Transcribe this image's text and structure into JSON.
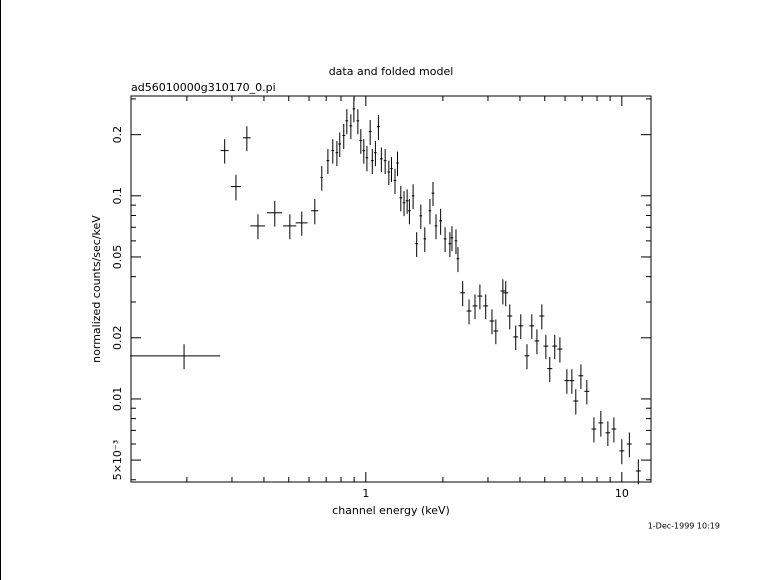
{
  "chart_data": {
    "type": "errorbar",
    "title": "data and folded model",
    "subtitle": "ad56010000g310170_0.pi",
    "x_label": "channel energy (keV)",
    "y_label": "normalized counts/sec/keV",
    "annotation": "1-Dec-1999 10:19",
    "xscale": "log",
    "yscale": "log",
    "color": "#000000",
    "xlim": [
      0.121,
      13
    ],
    "ylim": [
      0.0039,
      0.31
    ],
    "xticks": [
      1,
      10
    ],
    "xticks_minor": [
      0.2,
      0.3,
      0.4,
      0.5,
      0.6,
      0.7,
      0.8,
      0.9,
      2,
      3,
      4,
      5,
      6,
      7,
      8,
      9
    ],
    "yticks": [
      {
        "value": 0.005,
        "label": "5×10⁻³"
      },
      0.01,
      0.02,
      0.05,
      0.1,
      0.2
    ],
    "yticks_minor": [
      0.004,
      0.006,
      0.007,
      0.008,
      0.009,
      0.03,
      0.04,
      0.06,
      0.07,
      0.08,
      0.09,
      0.3
    ],
    "x": [
      0.195,
      0.281,
      0.311,
      0.343,
      0.379,
      0.441,
      0.505,
      0.562,
      0.632,
      0.673,
      0.711,
      0.743,
      0.771,
      0.791,
      0.82,
      0.843,
      0.874,
      0.898,
      0.931,
      0.956,
      0.982,
      1.01,
      1.04,
      1.06,
      1.09,
      1.12,
      1.15,
      1.19,
      1.23,
      1.26,
      1.3,
      1.33,
      1.37,
      1.41,
      1.45,
      1.48,
      1.53,
      1.58,
      1.64,
      1.7,
      1.78,
      1.83,
      1.88,
      1.96,
      2.04,
      2.13,
      2.17,
      2.25,
      2.29,
      2.39,
      2.53,
      2.67,
      2.79,
      2.94,
      3.11,
      3.22,
      3.43,
      3.52,
      3.65,
      3.85,
      4.03,
      4.26,
      4.45,
      4.66,
      4.87,
      5.05,
      5.23,
      5.47,
      5.73,
      6.1,
      6.38,
      6.61,
      6.92,
      7.3,
      7.78,
      8.28,
      8.82,
      9.31,
      10,
      10.7,
      11.6
    ],
    "xerr": [
      0.075,
      0.01,
      0.014,
      0.012,
      0.025,
      0.03,
      0.03,
      0.03,
      0.02,
      0.008,
      0.009,
      0.009,
      0.009,
      0.01,
      0.01,
      0.01,
      0.011,
      0.011,
      0.011,
      0.012,
      0.012,
      0.012,
      0.013,
      0.013,
      0.013,
      0.014,
      0.014,
      0.014,
      0.015,
      0.015,
      0.016,
      0.016,
      0.017,
      0.017,
      0.018,
      0.018,
      0.018,
      0.019,
      0.02,
      0.02,
      0.021,
      0.022,
      0.023,
      0.024,
      0.025,
      0.026,
      0.026,
      0.027,
      0.028,
      0.05,
      0.056,
      0.059,
      0.061,
      0.065,
      0.068,
      0.071,
      0.075,
      0.077,
      0.08,
      0.085,
      0.089,
      0.094,
      0.098,
      0.1,
      0.11,
      0.11,
      0.12,
      0.12,
      0.13,
      0.13,
      0.14,
      0.15,
      0.15,
      0.16,
      0.17,
      0.18,
      0.19,
      0.2,
      0.22,
      0.24,
      0.26
    ],
    "values": [
      0.0163,
      0.167,
      0.111,
      0.193,
      0.0711,
      0.0825,
      0.0711,
      0.0736,
      0.0844,
      0.123,
      0.149,
      0.167,
      0.163,
      0.18,
      0.198,
      0.234,
      0.221,
      0.268,
      0.234,
      0.187,
      0.167,
      0.154,
      0.207,
      0.149,
      0.163,
      0.219,
      0.152,
      0.149,
      0.131,
      0.136,
      0.119,
      0.145,
      0.0978,
      0.0924,
      0.0945,
      0.0844,
      0.1,
      0.0581,
      0.0797,
      0.0614,
      0.0844,
      0.103,
      0.0711,
      0.0753,
      0.0614,
      0.0581,
      0.0621,
      0.06,
      0.049,
      0.0333,
      0.0271,
      0.0287,
      0.0321,
      0.0287,
      0.0242,
      0.0216,
      0.034,
      0.0333,
      0.0256,
      0.0202,
      0.0229,
      0.0163,
      0.0229,
      0.0193,
      0.0256,
      0.0182,
      0.0141,
      0.0182,
      0.0176,
      0.0123,
      0.0123,
      0.00977,
      0.013,
      0.0109,
      0.00711,
      0.00762,
      0.00681,
      0.00711,
      0.00555,
      0.006,
      0.00442
    ],
    "yerr": [
      0.0023,
      0.023,
      0.016,
      0.027,
      0.01,
      0.012,
      0.01,
      0.01,
      0.012,
      0.017,
      0.021,
      0.023,
      0.023,
      0.025,
      0.028,
      0.033,
      0.031,
      0.038,
      0.033,
      0.026,
      0.023,
      0.022,
      0.029,
      0.021,
      0.023,
      0.031,
      0.021,
      0.021,
      0.018,
      0.019,
      0.017,
      0.02,
      0.014,
      0.013,
      0.013,
      0.012,
      0.014,
      0.0081,
      0.011,
      0.0086,
      0.012,
      0.014,
      0.01,
      0.011,
      0.0086,
      0.0081,
      0.0087,
      0.0084,
      0.0069,
      0.0047,
      0.0038,
      0.004,
      0.0045,
      0.004,
      0.0034,
      0.003,
      0.0048,
      0.0047,
      0.0036,
      0.0028,
      0.0032,
      0.0023,
      0.0032,
      0.0027,
      0.0036,
      0.0025,
      0.002,
      0.0025,
      0.0025,
      0.0017,
      0.0017,
      0.0014,
      0.0018,
      0.0015,
      0.001,
      0.0011,
      0.00095,
      0.001,
      0.00078,
      0.00084,
      0.00062
    ]
  }
}
